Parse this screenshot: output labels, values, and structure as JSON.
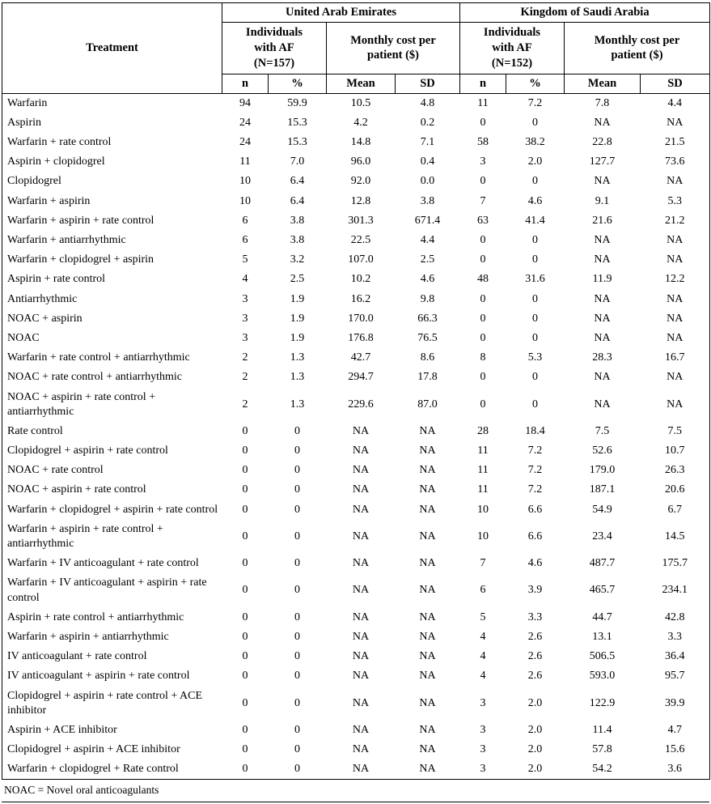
{
  "table": {
    "treatment_header": "Treatment",
    "groups": [
      {
        "name": "United Arab Emirates",
        "sub": [
          {
            "name": "Individuals\nwith AF\n(N=157)",
            "cols": [
              "n",
              "%"
            ]
          },
          {
            "name": "Monthly cost per\npatient ($)",
            "cols": [
              "Mean",
              "SD"
            ]
          }
        ]
      },
      {
        "name": "Kingdom of Saudi Arabia",
        "sub": [
          {
            "name": "Individuals\nwith AF\n(N=152)",
            "cols": [
              "n",
              "%"
            ]
          },
          {
            "name": "Monthly cost per\npatient ($)",
            "cols": [
              "Mean",
              "SD"
            ]
          }
        ]
      }
    ],
    "rows": [
      {
        "treatment": "Warfarin",
        "values": [
          "94",
          "59.9",
          "10.5",
          "4.8",
          "11",
          "7.2",
          "7.8",
          "4.4"
        ]
      },
      {
        "treatment": "Aspirin",
        "values": [
          "24",
          "15.3",
          "4.2",
          "0.2",
          "0",
          "0",
          "NA",
          "NA"
        ]
      },
      {
        "treatment": "Warfarin + rate control",
        "values": [
          "24",
          "15.3",
          "14.8",
          "7.1",
          "58",
          "38.2",
          "22.8",
          "21.5"
        ]
      },
      {
        "treatment": "Aspirin + clopidogrel",
        "values": [
          "11",
          "7.0",
          "96.0",
          "0.4",
          "3",
          "2.0",
          "127.7",
          "73.6"
        ]
      },
      {
        "treatment": "Clopidogrel",
        "values": [
          "10",
          "6.4",
          "92.0",
          "0.0",
          "0",
          "0",
          "NA",
          "NA"
        ]
      },
      {
        "treatment": "Warfarin + aspirin",
        "values": [
          "10",
          "6.4",
          "12.8",
          "3.8",
          "7",
          "4.6",
          "9.1",
          "5.3"
        ]
      },
      {
        "treatment": "Warfarin + aspirin + rate control",
        "values": [
          "6",
          "3.8",
          "301.3",
          "671.4",
          "63",
          "41.4",
          "21.6",
          "21.2"
        ]
      },
      {
        "treatment": "Warfarin + antiarrhythmic",
        "values": [
          "6",
          "3.8",
          "22.5",
          "4.4",
          "0",
          "0",
          "NA",
          "NA"
        ]
      },
      {
        "treatment": "Warfarin + clopidogrel + aspirin",
        "values": [
          "5",
          "3.2",
          "107.0",
          "2.5",
          "0",
          "0",
          "NA",
          "NA"
        ]
      },
      {
        "treatment": "Aspirin + rate control",
        "values": [
          "4",
          "2.5",
          "10.2",
          "4.6",
          "48",
          "31.6",
          "11.9",
          "12.2"
        ]
      },
      {
        "treatment": "Antiarrhythmic",
        "values": [
          "3",
          "1.9",
          "16.2",
          "9.8",
          "0",
          "0",
          "NA",
          "NA"
        ]
      },
      {
        "treatment": "NOAC + aspirin",
        "values": [
          "3",
          "1.9",
          "170.0",
          "66.3",
          "0",
          "0",
          "NA",
          "NA"
        ]
      },
      {
        "treatment": "NOAC",
        "values": [
          "3",
          "1.9",
          "176.8",
          "76.5",
          "0",
          "0",
          "NA",
          "NA"
        ]
      },
      {
        "treatment": "Warfarin + rate control + antiarrhythmic",
        "values": [
          "2",
          "1.3",
          "42.7",
          "8.6",
          "8",
          "5.3",
          "28.3",
          "16.7"
        ]
      },
      {
        "treatment": "NOAC + rate control + antiarrhythmic",
        "values": [
          "2",
          "1.3",
          "294.7",
          "17.8",
          "0",
          "0",
          "NA",
          "NA"
        ]
      },
      {
        "treatment": "NOAC + aspirin + rate control + antiarrhythmic",
        "values": [
          "2",
          "1.3",
          "229.6",
          "87.0",
          "0",
          "0",
          "NA",
          "NA"
        ]
      },
      {
        "treatment": "Rate control",
        "values": [
          "0",
          "0",
          "NA",
          "NA",
          "28",
          "18.4",
          "7.5",
          "7.5"
        ]
      },
      {
        "treatment": "Clopidogrel + aspirin + rate control",
        "values": [
          "0",
          "0",
          "NA",
          "NA",
          "11",
          "7.2",
          "52.6",
          "10.7"
        ]
      },
      {
        "treatment": "NOAC + rate control",
        "values": [
          "0",
          "0",
          "NA",
          "NA",
          "11",
          "7.2",
          "179.0",
          "26.3"
        ]
      },
      {
        "treatment": "NOAC + aspirin + rate control",
        "values": [
          "0",
          "0",
          "NA",
          "NA",
          "11",
          "7.2",
          "187.1",
          "20.6"
        ]
      },
      {
        "treatment": "Warfarin + clopidogrel + aspirin + rate control",
        "values": [
          "0",
          "0",
          "NA",
          "NA",
          "10",
          "6.6",
          "54.9",
          "6.7"
        ]
      },
      {
        "treatment": "Warfarin + aspirin + rate control + antiarrhythmic",
        "values": [
          "0",
          "0",
          "NA",
          "NA",
          "10",
          "6.6",
          "23.4",
          "14.5"
        ]
      },
      {
        "treatment": "Warfarin + IV anticoagulant + rate control",
        "values": [
          "0",
          "0",
          "NA",
          "NA",
          "7",
          "4.6",
          "487.7",
          "175.7"
        ]
      },
      {
        "treatment": "Warfarin + IV anticoagulant + aspirin + rate control",
        "values": [
          "0",
          "0",
          "NA",
          "NA",
          "6",
          "3.9",
          "465.7",
          "234.1"
        ]
      },
      {
        "treatment": "Aspirin + rate control + antiarrhythmic",
        "values": [
          "0",
          "0",
          "NA",
          "NA",
          "5",
          "3.3",
          "44.7",
          "42.8"
        ]
      },
      {
        "treatment": "Warfarin + aspirin + antiarrhythmic",
        "values": [
          "0",
          "0",
          "NA",
          "NA",
          "4",
          "2.6",
          "13.1",
          "3.3"
        ]
      },
      {
        "treatment": "IV anticoagulant + rate control",
        "values": [
          "0",
          "0",
          "NA",
          "NA",
          "4",
          "2.6",
          "506.5",
          "36.4"
        ]
      },
      {
        "treatment": "IV anticoagulant + aspirin + rate control",
        "values": [
          "0",
          "0",
          "NA",
          "NA",
          "4",
          "2.6",
          "593.0",
          "95.7"
        ]
      },
      {
        "treatment": "Clopidogrel + aspirin + rate control + ACE inhibitor",
        "values": [
          "0",
          "0",
          "NA",
          "NA",
          "3",
          "2.0",
          "122.9",
          "39.9"
        ]
      },
      {
        "treatment": "Aspirin + ACE inhibitor",
        "values": [
          "0",
          "0",
          "NA",
          "NA",
          "3",
          "2.0",
          "11.4",
          "4.7"
        ]
      },
      {
        "treatment": "Clopidogrel + aspirin + ACE inhibitor",
        "values": [
          "0",
          "0",
          "NA",
          "NA",
          "3",
          "2.0",
          "57.8",
          "15.6"
        ]
      },
      {
        "treatment": "Warfarin + clopidogrel + Rate control",
        "values": [
          "0",
          "0",
          "NA",
          "NA",
          "3",
          "2.0",
          "54.2",
          "3.6"
        ]
      }
    ],
    "footnote": "NOAC = Novel oral anticoagulants"
  }
}
